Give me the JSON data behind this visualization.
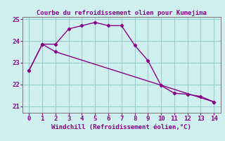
{
  "title": "Courbe du refroidissement olien pour Kumejima",
  "xlabel": "Windchill (Refroidissement éolien,°C)",
  "xlim": [
    -0.5,
    14.5
  ],
  "ylim": [
    20.7,
    25.1
  ],
  "yticks": [
    21,
    22,
    23,
    24,
    25
  ],
  "xticks": [
    0,
    1,
    2,
    3,
    4,
    5,
    6,
    7,
    8,
    9,
    10,
    11,
    12,
    13,
    14
  ],
  "curve_x": [
    0,
    1,
    2,
    3,
    4,
    5,
    6,
    7,
    8,
    9,
    10,
    11,
    12,
    13,
    14
  ],
  "curve_y": [
    22.65,
    23.85,
    23.85,
    24.55,
    24.7,
    24.85,
    24.7,
    24.7,
    23.8,
    23.1,
    21.95,
    21.6,
    21.55,
    21.45,
    21.2
  ],
  "line_x": [
    0,
    1,
    2,
    14
  ],
  "line_y": [
    22.65,
    23.85,
    23.5,
    21.2
  ],
  "color": "#880088",
  "bg_color": "#d0f0f0",
  "grid_color": "#99cccc",
  "axis_fontsize": 6.5,
  "tick_fontsize": 6.5
}
